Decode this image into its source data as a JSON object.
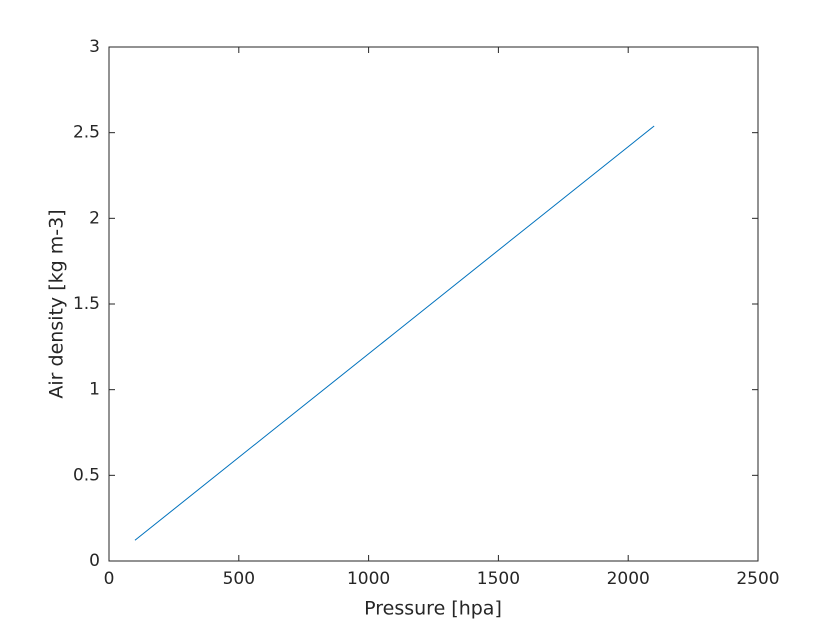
{
  "chart_data": {
    "type": "line",
    "xlabel": "Pressure [hpa]",
    "ylabel": "Air density [kg m-3]",
    "x": [
      100,
      600,
      1100,
      1600,
      2100
    ],
    "series": [
      {
        "name": "Air density",
        "color": "#0072bd",
        "values": [
          0.121,
          0.726,
          1.33,
          1.935,
          2.539
        ]
      }
    ],
    "xlim": [
      0,
      2500
    ],
    "xticks": [
      0,
      500,
      1000,
      1500,
      2000,
      2500
    ],
    "ylim": [
      0,
      3
    ],
    "yticks": [
      0,
      0.5,
      1,
      1.5,
      2,
      2.5,
      3
    ],
    "grid": false
  }
}
